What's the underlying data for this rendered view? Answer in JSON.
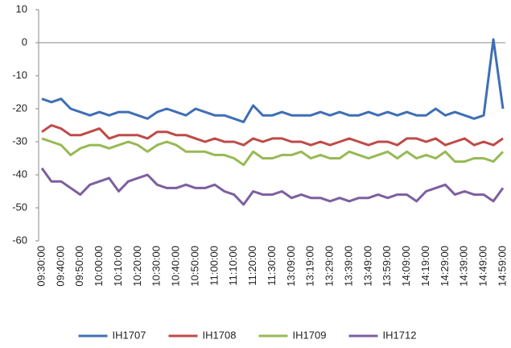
{
  "chart_data": {
    "type": "line",
    "categories": [
      "09:30:00",
      null,
      "09:40:00",
      null,
      "09:50:00",
      null,
      "10:00:00",
      null,
      "10:10:00",
      null,
      "10:20:00",
      null,
      "10:30:00",
      null,
      "10:40:00",
      null,
      "10:50:00",
      null,
      "11:00:00",
      null,
      "11:10:00",
      null,
      "11:20:00",
      null,
      "11:30:00",
      null,
      "13:09:00",
      null,
      "13:19:00",
      null,
      "13:29:00",
      null,
      "13:39:00",
      null,
      "13:49:00",
      null,
      "13:59:00",
      null,
      "14:09:00",
      null,
      "14:19:00",
      null,
      "14:29:00",
      null,
      "14:39:00",
      null,
      "14:49:00",
      null,
      "14:59:00"
    ],
    "series": [
      {
        "name": "IH1707",
        "color": "#3f6fb5",
        "values": [
          -17,
          -18,
          -17,
          -20,
          -21,
          -22,
          -21,
          -22,
          -21,
          -21,
          -22,
          -23,
          -21,
          -20,
          -21,
          -22,
          -20,
          -21,
          -22,
          -22,
          -23,
          -24,
          -19,
          -22,
          -22,
          -21,
          -22,
          -22,
          -22,
          -21,
          -22,
          -21,
          -22,
          -22,
          -21,
          -22,
          -21,
          -22,
          -21,
          -22,
          -22,
          -20,
          -22,
          -21,
          -22,
          -23,
          -22,
          1,
          -20
        ]
      },
      {
        "name": "IH1708",
        "color": "#be4b48",
        "values": [
          -27,
          -25,
          -26,
          -28,
          -28,
          -27,
          -26,
          -29,
          -28,
          -28,
          -28,
          -29,
          -27,
          -27,
          -28,
          -28,
          -29,
          -30,
          -29,
          -30,
          -30,
          -31,
          -29,
          -30,
          -29,
          -29,
          -30,
          -30,
          -31,
          -30,
          -31,
          -30,
          -29,
          -30,
          -31,
          -30,
          -30,
          -31,
          -29,
          -29,
          -30,
          -29,
          -31,
          -30,
          -29,
          -31,
          -30,
          -31,
          -29
        ]
      },
      {
        "name": "IH1709",
        "color": "#98b954",
        "values": [
          -29,
          -30,
          -31,
          -34,
          -32,
          -31,
          -31,
          -32,
          -31,
          -30,
          -31,
          -33,
          -31,
          -30,
          -31,
          -33,
          -33,
          -33,
          -34,
          -34,
          -35,
          -37,
          -33,
          -35,
          -35,
          -34,
          -34,
          -33,
          -35,
          -34,
          -35,
          -35,
          -33,
          -34,
          -35,
          -34,
          -33,
          -35,
          -33,
          -35,
          -34,
          -35,
          -33,
          -36,
          -36,
          -35,
          -35,
          -36,
          -33
        ]
      },
      {
        "name": "IH1712",
        "color": "#7d5fa0",
        "values": [
          -38,
          -42,
          -42,
          -44,
          -46,
          -43,
          -42,
          -41,
          -45,
          -42,
          -41,
          -40,
          -43,
          -44,
          -44,
          -43,
          -44,
          -44,
          -43,
          -45,
          -46,
          -49,
          -45,
          -46,
          -46,
          -45,
          -47,
          -46,
          -47,
          -47,
          -48,
          -47,
          -48,
          -47,
          -47,
          -46,
          -47,
          -46,
          -46,
          -48,
          -45,
          -44,
          -43,
          -46,
          -45,
          -46,
          -46,
          -48,
          -44
        ]
      }
    ],
    "ylim": [
      -60,
      10
    ],
    "yticks": [
      -60,
      -50,
      -40,
      -30,
      -20,
      -10,
      0,
      10
    ],
    "legend": "bottom"
  }
}
